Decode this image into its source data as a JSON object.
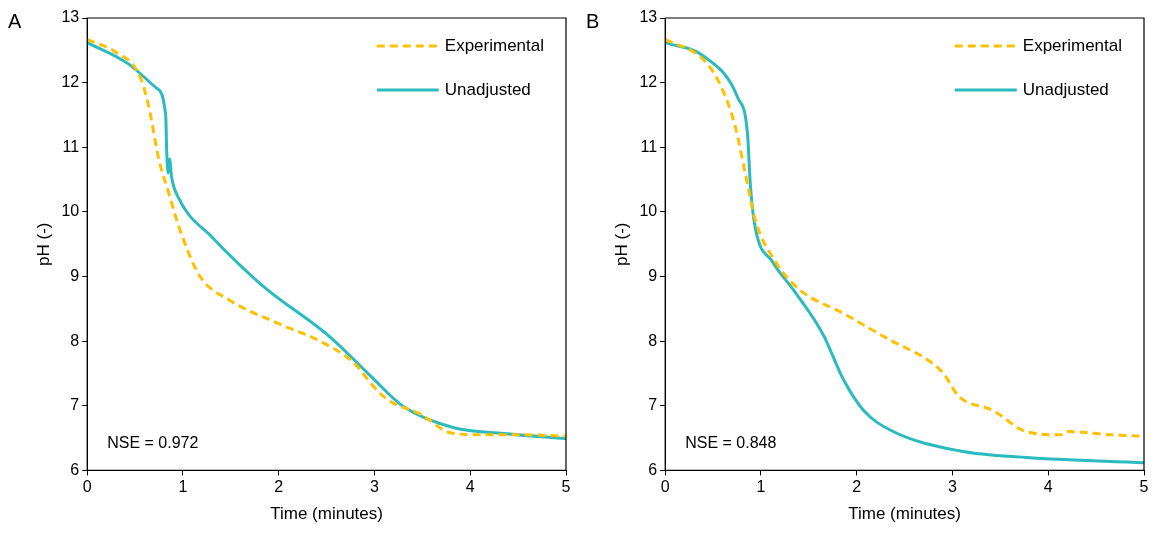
{
  "chart_data": [
    {
      "type": "line",
      "title": "A",
      "xlabel": "Time (minutes)",
      "ylabel": "pH (-)",
      "xlim": [
        0,
        5
      ],
      "xticks": [
        0,
        1,
        2,
        3,
        4,
        5
      ],
      "ylim": [
        6,
        13
      ],
      "yticks": [
        6,
        7,
        8,
        9,
        10,
        11,
        12,
        13
      ],
      "grid": false,
      "legend": "top right",
      "annotations": [
        "NSE = 0.972"
      ],
      "series": [
        {
          "name": "Experimental",
          "color": "#ffc000",
          "line_style": "dashed",
          "x": [
            0,
            0.3,
            0.54,
            0.64,
            0.75,
            0.85,
            0.96,
            1.17,
            1.48,
            2.0,
            2.43,
            2.78,
            2.99,
            3.14,
            3.48,
            3.8,
            4.12,
            4.54,
            5
          ],
          "values": [
            12.67,
            12.47,
            12.13,
            11.65,
            10.8,
            10.3,
            9.76,
            9.02,
            8.64,
            8.27,
            8.0,
            7.67,
            7.3,
            7.09,
            6.87,
            6.58,
            6.55,
            6.55,
            6.53
          ]
        },
        {
          "name": "Unadjusted",
          "color": "#2bbbbf",
          "line_style": "solid",
          "x": [
            0,
            0.43,
            0.72,
            0.82,
            0.83,
            0.845,
            0.86,
            0.88,
            0.96,
            1.31,
            1.83,
            2.54,
            2.96,
            3.31,
            3.83,
            4.36,
            5
          ],
          "values": [
            12.62,
            12.29,
            11.92,
            11.49,
            10.95,
            10.6,
            10.82,
            10.55,
            10.2,
            9.6,
            8.86,
            8.06,
            7.46,
            6.98,
            6.66,
            6.57,
            6.49
          ]
        }
      ]
    },
    {
      "type": "line",
      "title": "B",
      "xlabel": "Time (minutes)",
      "ylabel": "pH (-)",
      "xlim": [
        0,
        5
      ],
      "xticks": [
        0,
        1,
        2,
        3,
        4,
        5
      ],
      "ylim": [
        6,
        13
      ],
      "yticks": [
        6,
        7,
        8,
        9,
        10,
        11,
        12,
        13
      ],
      "grid": false,
      "legend": "top right",
      "annotations": [
        "NSE = 0.848"
      ],
      "series": [
        {
          "name": "Experimental",
          "color": "#ffc000",
          "line_style": "dashed",
          "x": [
            0,
            0.41,
            0.59,
            0.73,
            0.84,
            0.94,
            1.15,
            1.4,
            1.86,
            2.37,
            2.72,
            2.9,
            3.07,
            3.42,
            3.77,
            4.13,
            4.2,
            4.66,
            5
          ],
          "values": [
            12.67,
            12.34,
            11.92,
            11.33,
            10.57,
            9.88,
            9.23,
            8.8,
            8.43,
            8.0,
            7.73,
            7.51,
            7.14,
            6.93,
            6.6,
            6.55,
            6.6,
            6.55,
            6.53
          ]
        },
        {
          "name": "Unadjusted",
          "color": "#2bbbbf",
          "line_style": "solid",
          "x": [
            0,
            0.41,
            0.76,
            0.86,
            0.89,
            0.94,
            1.12,
            1.36,
            1.65,
            1.86,
            2.07,
            2.37,
            3.08,
            3.77,
            5
          ],
          "values": [
            12.62,
            12.4,
            11.76,
            11.2,
            10.4,
            9.76,
            9.23,
            8.75,
            8.1,
            7.41,
            6.93,
            6.61,
            6.3,
            6.2,
            6.12
          ]
        }
      ]
    }
  ]
}
